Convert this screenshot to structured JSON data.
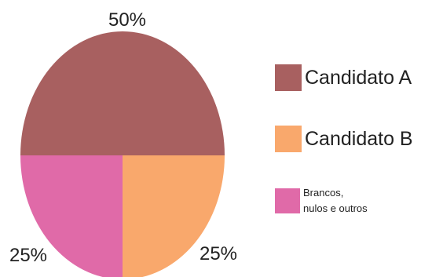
{
  "chart_data": {
    "type": "pie",
    "categories": [
      "Candidato A",
      "Candidato B",
      "Brancos, nulos e outros"
    ],
    "values": [
      50,
      25,
      25
    ],
    "data_labels": [
      "50%",
      "25%",
      "25%"
    ],
    "colors": [
      "#a86060",
      "#f9a86c",
      "#e06aa8"
    ],
    "legend": "right"
  },
  "legend": {
    "items": [
      {
        "label": "Candidato A",
        "color": "#a86060"
      },
      {
        "label": "Candidato B",
        "color": "#f9a86c"
      },
      {
        "label_line1": "Brancos,",
        "label_line2": "nulos e outros",
        "color": "#e06aa8"
      }
    ]
  }
}
